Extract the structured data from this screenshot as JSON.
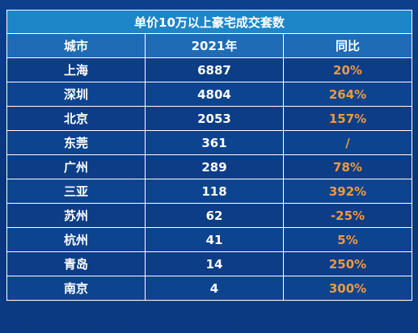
{
  "table": {
    "title": "单价10万以上豪宅成交套数",
    "columns": [
      "城市",
      "2021年",
      "同比"
    ],
    "rows": [
      {
        "city": "上海",
        "count": "6887",
        "yoy": "20%"
      },
      {
        "city": "深圳",
        "count": "4804",
        "yoy": "264%"
      },
      {
        "city": "北京",
        "count": "2053",
        "yoy": "157%"
      },
      {
        "city": "东莞",
        "count": "361",
        "yoy": "/"
      },
      {
        "city": "广州",
        "count": "289",
        "yoy": "78%"
      },
      {
        "city": "三亚",
        "count": "118",
        "yoy": "392%"
      },
      {
        "city": "苏州",
        "count": "62",
        "yoy": "-25%"
      },
      {
        "city": "杭州",
        "count": "41",
        "yoy": "5%"
      },
      {
        "city": "青岛",
        "count": "14",
        "yoy": "250%"
      },
      {
        "city": "南京",
        "count": "4",
        "yoy": "300%"
      }
    ]
  },
  "colors": {
    "background": "#0b3a84",
    "title_bg": "#1c86c9",
    "header_bg": "#1f6bb5",
    "row_bg": "#0c3d86",
    "yoy_text": "#f19a3e",
    "text": "#ffffff"
  }
}
